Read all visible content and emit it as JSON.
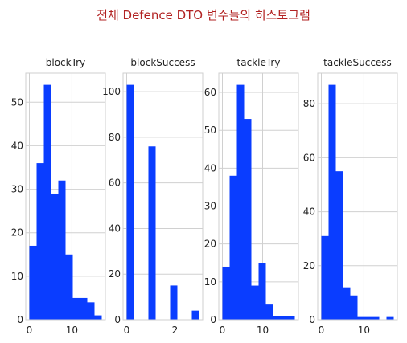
{
  "figure": {
    "title": "전체 Defence DTO 변수들의 히스토그램",
    "title_color": "#b22222",
    "bar_color": "#0a3dff",
    "grid": true
  },
  "chart_data": [
    {
      "type": "bar",
      "title": "blockTry",
      "bin_range": [
        0,
        17
      ],
      "bin_edges": [
        0,
        1.7,
        3.4,
        5.1,
        6.8,
        8.5,
        10.2,
        11.9,
        13.6,
        15.3,
        17
      ],
      "values": [
        17,
        36,
        54,
        29,
        32,
        15,
        5,
        5,
        4,
        1
      ],
      "xlim": [
        -0.85,
        17.85
      ],
      "ylim": [
        0,
        56.7
      ],
      "xticks": [
        0,
        10
      ],
      "yticks": [
        0,
        10,
        20,
        30,
        40,
        50
      ]
    },
    {
      "type": "bar",
      "title": "blockSuccess",
      "bin_range": [
        0,
        3
      ],
      "bin_edges": [
        0,
        0.3,
        0.6,
        0.9,
        1.2,
        1.5,
        1.8,
        2.1,
        2.4,
        2.7,
        3
      ],
      "values": [
        103,
        0,
        0,
        76,
        0,
        0,
        15,
        0,
        0,
        4
      ],
      "xlim": [
        -0.15,
        3.15
      ],
      "ylim": [
        0,
        108.15
      ],
      "xticks": [
        0,
        2
      ],
      "yticks": [
        0,
        20,
        40,
        60,
        80,
        100
      ]
    },
    {
      "type": "bar",
      "title": "tackleTry",
      "bin_range": [
        0,
        18
      ],
      "bin_edges": [
        0,
        1.8,
        3.6,
        5.4,
        7.2,
        9,
        10.8,
        12.6,
        14.4,
        16.2,
        18
      ],
      "values": [
        14,
        38,
        62,
        53,
        9,
        15,
        4,
        1,
        1,
        1
      ],
      "xlim": [
        -0.9,
        18.9
      ],
      "ylim": [
        0,
        65.1
      ],
      "xticks": [
        0,
        10
      ],
      "yticks": [
        0,
        10,
        20,
        30,
        40,
        50,
        60
      ]
    },
    {
      "type": "bar",
      "title": "tackleSuccess",
      "bin_range": [
        0,
        17
      ],
      "bin_edges": [
        0,
        1.7,
        3.4,
        5.1,
        6.8,
        8.5,
        10.2,
        11.9,
        13.6,
        15.3,
        17
      ],
      "values": [
        31,
        87,
        55,
        12,
        9,
        1,
        1,
        1,
        0,
        1
      ],
      "xlim": [
        -0.85,
        17.85
      ],
      "ylim": [
        0,
        91.35
      ],
      "xticks": [
        0,
        10
      ],
      "yticks": [
        0,
        20,
        40,
        60,
        80
      ]
    }
  ]
}
